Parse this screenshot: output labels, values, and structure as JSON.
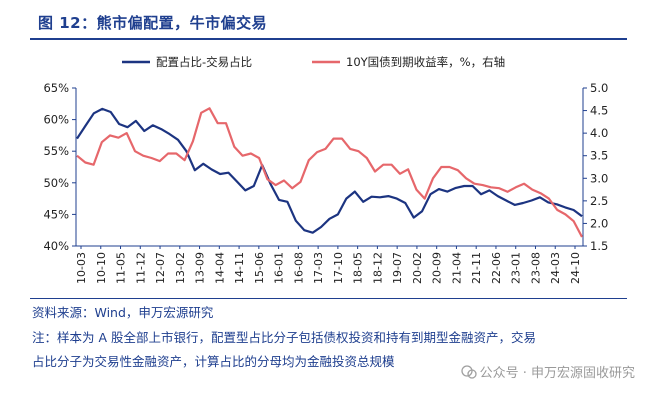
{
  "title": "图 12：熊市偏配置，牛市偏交易",
  "source_text": "资料来源：Wind，申万宏源研究",
  "note_line1": "注：样本为 A 股全部上市银行，配置型占比分子包括债权投资和持有到期型金融资产，交易",
  "note_line2": "占比分子为交易性金融资产，计算占比的分母均为金融投资总规模",
  "watermark": "公众号 · 申万宏源固收研究",
  "colors": {
    "title": "#1f3f8f",
    "series1": "#1c3481",
    "series2": "#e6676b",
    "axis": "#1f3f8f"
  },
  "chart_data": {
    "type": "line",
    "title": "图 12：熊市偏配置，牛市偏交易",
    "xlabel": "",
    "ylabel": "",
    "legend_position": "top",
    "grid": false,
    "ylim_left": [
      0.4,
      0.65
    ],
    "ylim_right": [
      1.5,
      5.0
    ],
    "left_tick_labels": [
      "40%",
      "45%",
      "50%",
      "55%",
      "60%",
      "65%"
    ],
    "right_tick_labels": [
      "1.5",
      "2.0",
      "2.5",
      "3.0",
      "3.5",
      "4.0",
      "4.5",
      "5.0"
    ],
    "x_labels": [
      "10-03",
      "10-10",
      "11-05",
      "11-12",
      "12-07",
      "13-02",
      "13-09",
      "14-04",
      "14-11",
      "15-06",
      "16-01",
      "16-08",
      "17-03",
      "17-10",
      "18-05",
      "18-12",
      "19-07",
      "20-02",
      "20-09",
      "21-04",
      "21-11",
      "22-06",
      "23-01",
      "23-08",
      "24-03",
      "24-10"
    ],
    "series": [
      {
        "name": "配置占比-交易占比",
        "axis": "left",
        "values": [
          0.57,
          0.59,
          0.61,
          0.617,
          0.612,
          0.593,
          0.588,
          0.598,
          0.582,
          0.591,
          0.585,
          0.577,
          0.568,
          0.55,
          0.52,
          0.53,
          0.521,
          0.514,
          0.516,
          0.502,
          0.488,
          0.495,
          0.528,
          0.498,
          0.473,
          0.47,
          0.44,
          0.425,
          0.421,
          0.43,
          0.443,
          0.45,
          0.475,
          0.486,
          0.47,
          0.478,
          0.477,
          0.479,
          0.475,
          0.468,
          0.445,
          0.455,
          0.482,
          0.49,
          0.486,
          0.492,
          0.495,
          0.495,
          0.482,
          0.488,
          0.479,
          0.472,
          0.465,
          0.468,
          0.472,
          0.477,
          0.469,
          0.466,
          0.461,
          0.457,
          0.447
        ]
      },
      {
        "name": "10Y国债到期收益率，%，右轴",
        "axis": "right",
        "values": [
          3.5,
          3.35,
          3.3,
          3.8,
          3.95,
          3.9,
          4.0,
          3.6,
          3.5,
          3.45,
          3.38,
          3.55,
          3.55,
          3.4,
          3.82,
          4.45,
          4.55,
          4.22,
          4.22,
          3.7,
          3.5,
          3.55,
          3.45,
          2.98,
          2.85,
          2.95,
          2.78,
          2.92,
          3.4,
          3.58,
          3.65,
          3.88,
          3.88,
          3.65,
          3.6,
          3.45,
          3.15,
          3.3,
          3.3,
          3.1,
          3.2,
          2.75,
          2.55,
          3.0,
          3.25,
          3.25,
          3.18,
          3.0,
          2.88,
          2.85,
          2.8,
          2.78,
          2.7,
          2.8,
          2.88,
          2.75,
          2.67,
          2.55,
          2.3,
          2.2,
          2.05,
          1.7
        ]
      }
    ]
  }
}
